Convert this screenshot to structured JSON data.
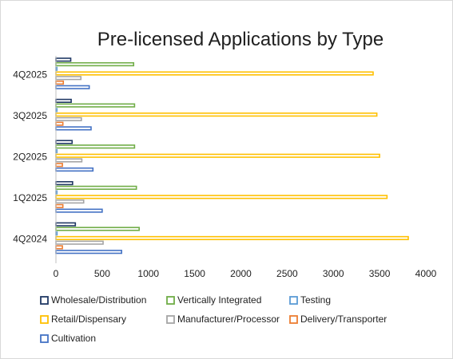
{
  "chart_data": {
    "type": "bar",
    "orientation": "horizontal",
    "title": "Pre-licensed Applications by Type",
    "xlabel": "",
    "ylabel": "",
    "xlim": [
      0,
      4000
    ],
    "xticks": [
      0,
      500,
      1000,
      1500,
      2000,
      2500,
      3000,
      3500,
      4000
    ],
    "grid": false,
    "legend_position": "bottom",
    "categories": [
      "4Q2024",
      "1Q2025",
      "2Q2025",
      "3Q2025",
      "4Q2025"
    ],
    "series": [
      {
        "name": "Wholesale/Distribution",
        "color": "#203864",
        "values": [
          210,
          180,
          175,
          165,
          160
        ]
      },
      {
        "name": "Vertically Integrated",
        "color": "#70ad47",
        "values": [
          900,
          870,
          850,
          850,
          840
        ]
      },
      {
        "name": "Testing",
        "color": "#5b9bd5",
        "values": [
          12,
          10,
          10,
          10,
          10
        ]
      },
      {
        "name": "Retail/Dispensary",
        "color": "#ffc000",
        "values": [
          3810,
          3580,
          3500,
          3470,
          3430
        ]
      },
      {
        "name": "Manufacturer/Processor",
        "color": "#a5a5a5",
        "values": [
          510,
          300,
          280,
          275,
          270
        ]
      },
      {
        "name": "Delivery/Transporter",
        "color": "#ed7d31",
        "values": [
          70,
          75,
          70,
          75,
          80
        ]
      },
      {
        "name": "Cultivation",
        "color": "#4472c4",
        "values": [
          710,
          500,
          400,
          380,
          360
        ]
      }
    ]
  }
}
